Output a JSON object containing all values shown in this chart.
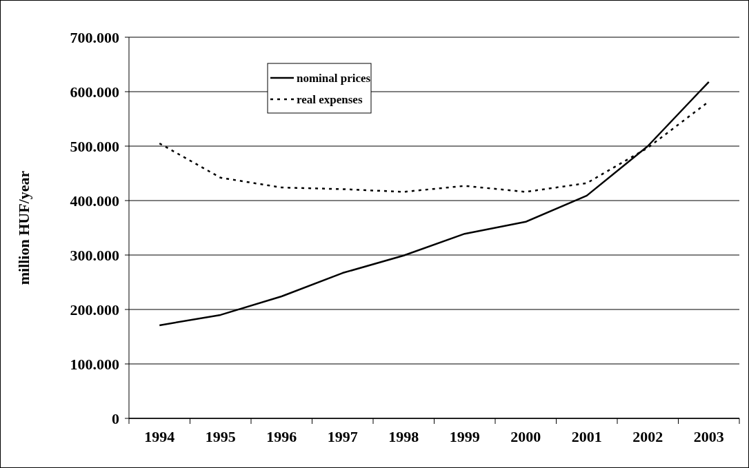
{
  "chart_data": {
    "type": "line",
    "ylabel": "million HUF/year",
    "categories": [
      "1994",
      "1995",
      "1996",
      "1997",
      "1998",
      "1999",
      "2000",
      "2001",
      "2002",
      "2003"
    ],
    "series": [
      {
        "name": "nominal prices",
        "color": "#000000",
        "line_style": "solid",
        "values": [
          171000,
          190000,
          224000,
          267000,
          299000,
          339000,
          361000,
          409000,
          500000,
          618000
        ]
      },
      {
        "name": "real expenses",
        "color": "#000000",
        "line_style": "dotted",
        "values": [
          505000,
          442000,
          424000,
          421000,
          416000,
          427000,
          416000,
          432000,
          497000,
          582000
        ]
      }
    ],
    "ylim": [
      0,
      700000
    ],
    "yticks": [
      0,
      {
        "value": 100000,
        "label": "100.000"
      },
      {
        "value": 200000,
        "label": "200.000"
      },
      {
        "value": 300000,
        "label": "300.000"
      },
      {
        "value": 400000,
        "label": "400.000"
      },
      {
        "value": 500000,
        "label": "500.000"
      },
      {
        "value": 600000,
        "label": "600.000"
      },
      {
        "value": 700000,
        "label": "700.000"
      }
    ],
    "grid": "y",
    "legend": "top left"
  }
}
